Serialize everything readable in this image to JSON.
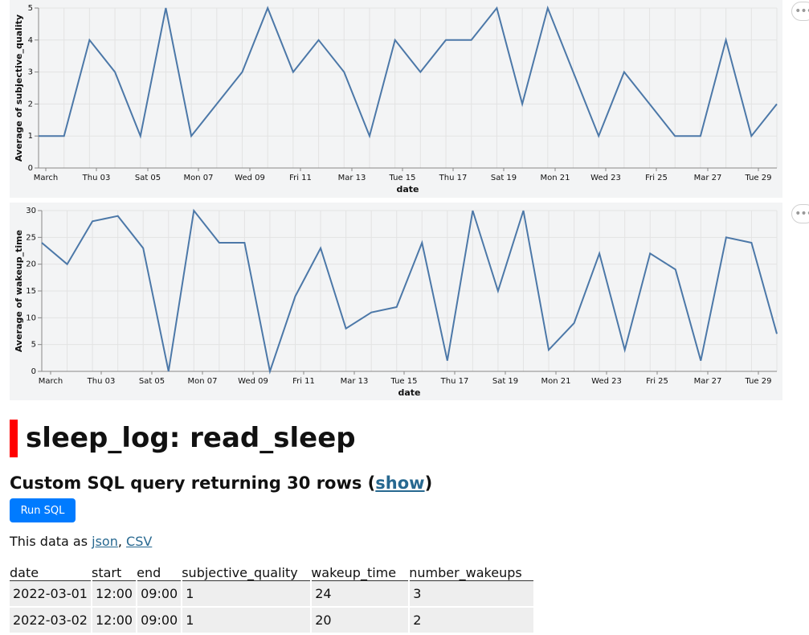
{
  "page": {
    "title": "sleep_log: read_sleep",
    "subtitle_prefix": "Custom SQL query returning 30 rows (",
    "subtitle_link": "show",
    "subtitle_suffix": ")",
    "run_button": "Run SQL",
    "export_prefix": "This data as ",
    "export_json": "json",
    "export_sep": ", ",
    "export_csv": "CSV",
    "menu_glyph": "•••"
  },
  "table": {
    "columns": [
      "date",
      "start",
      "end",
      "subjective_quality",
      "wakeup_time",
      "number_wakeups"
    ],
    "rows": [
      [
        "2022-03-01",
        "12:00",
        "09:00",
        "1",
        "24",
        "3"
      ],
      [
        "2022-03-02",
        "12:00",
        "09:00",
        "1",
        "20",
        "2"
      ]
    ]
  },
  "colors": {
    "line": "#4c78a8",
    "accent": "#ff0000",
    "button": "#007bff",
    "link": "#276890"
  },
  "chart_data": [
    {
      "type": "line",
      "xlabel": "date",
      "ylabel": "Average of subjective_quality",
      "ylim": [
        0,
        5
      ],
      "yticks": [
        0,
        1,
        2,
        3,
        4,
        5
      ],
      "x_tick_labels": [
        "March",
        "Thu 03",
        "Sat 05",
        "Mon 07",
        "Wed 09",
        "Fri 11",
        "Mar 13",
        "Tue 15",
        "Thu 17",
        "Sat 19",
        "Mon 21",
        "Wed 23",
        "Fri 25",
        "Mar 27",
        "Tue 29"
      ],
      "x": [
        "2022-03-01",
        "2022-03-02",
        "2022-03-03",
        "2022-03-04",
        "2022-03-05",
        "2022-03-06",
        "2022-03-07",
        "2022-03-08",
        "2022-03-09",
        "2022-03-10",
        "2022-03-11",
        "2022-03-12",
        "2022-03-13",
        "2022-03-14",
        "2022-03-15",
        "2022-03-16",
        "2022-03-17",
        "2022-03-18",
        "2022-03-19",
        "2022-03-20",
        "2022-03-21",
        "2022-03-22",
        "2022-03-23",
        "2022-03-24",
        "2022-03-25",
        "2022-03-26",
        "2022-03-27",
        "2022-03-28",
        "2022-03-29",
        "2022-03-30"
      ],
      "values": [
        1,
        1,
        4,
        3,
        1,
        5,
        1,
        2,
        3,
        5,
        3,
        4,
        3,
        1,
        4,
        3,
        4,
        4,
        5,
        2,
        5,
        3,
        1,
        3,
        2,
        1,
        1,
        4,
        1,
        2
      ],
      "grid": true
    },
    {
      "type": "line",
      "xlabel": "date",
      "ylabel": "Average of wakeup_time",
      "ylim": [
        0,
        30
      ],
      "yticks": [
        0,
        5,
        10,
        15,
        20,
        25,
        30
      ],
      "x_tick_labels": [
        "March",
        "Thu 03",
        "Sat 05",
        "Mon 07",
        "Wed 09",
        "Fri 11",
        "Mar 13",
        "Tue 15",
        "Thu 17",
        "Sat 19",
        "Mon 21",
        "Wed 23",
        "Fri 25",
        "Mar 27",
        "Tue 29"
      ],
      "x": [
        "2022-03-01",
        "2022-03-02",
        "2022-03-03",
        "2022-03-04",
        "2022-03-05",
        "2022-03-06",
        "2022-03-07",
        "2022-03-08",
        "2022-03-09",
        "2022-03-10",
        "2022-03-11",
        "2022-03-12",
        "2022-03-13",
        "2022-03-14",
        "2022-03-15",
        "2022-03-16",
        "2022-03-17",
        "2022-03-18",
        "2022-03-19",
        "2022-03-20",
        "2022-03-21",
        "2022-03-22",
        "2022-03-23",
        "2022-03-24",
        "2022-03-25",
        "2022-03-26",
        "2022-03-27",
        "2022-03-28",
        "2022-03-29",
        "2022-03-30"
      ],
      "values": [
        24,
        20,
        28,
        29,
        23,
        0,
        30,
        24,
        24,
        0,
        14,
        23,
        8,
        11,
        12,
        24,
        2,
        30,
        15,
        30,
        4,
        9,
        22,
        4,
        22,
        19,
        2,
        25,
        24,
        7
      ],
      "grid": true
    }
  ]
}
